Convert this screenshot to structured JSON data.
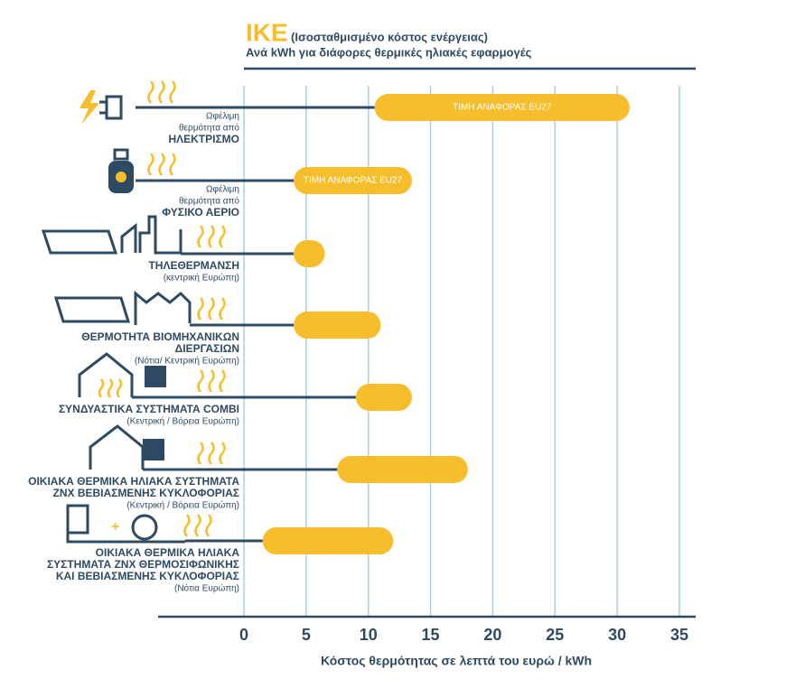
{
  "chart_data": {
    "type": "range-bar",
    "title": "ΙΚΕ",
    "title_note": "(Ισοσταθμισμένο κόστος ενέργειας)",
    "subtitle": "Ανά kWh για διάφορες θερμικές ηλιακές εφαρμογές",
    "x_label": "Κόστος θερμότητας σε λεπτά του ευρώ / kWh",
    "category_pre": [
      [
        "Ωφέλιμη",
        "θερμότητα από"
      ],
      [
        "Ωφέλιμη",
        "θερμότητα από"
      ],
      [],
      [],
      [],
      [],
      []
    ],
    "categories": [
      [
        "ΗΛΕΚΤΡΙΣΜΟ"
      ],
      [
        "ΦΥΣΙΚΟ ΑΕΡΙΟ"
      ],
      [
        "ΤΗΛΕΘΕΡΜΑΝΣΗ"
      ],
      [
        "ΘΕΡΜΟΤΗΤΑ ΒΙΟΜΗΧΑΝΙΚΩΝ",
        "ΔΙΕΡΓΑΣΙΩΝ"
      ],
      [
        "ΣΥΝΔΥΑΣΤΙΚΑ ΣΥΣΤΗΜΑΤΑ COMBI"
      ],
      [
        "ΟΙΚΙΑΚΑ ΘΕΡΜΙΚΑ ΗΛΙΑΚΑ ΣΥΣΤΗΜΑΤΑ",
        "ΖΝΧ ΒΕΒΙΑΣΜΕΝΗΣ ΚΥΚΛΟΦΟΡΙΑΣ"
      ],
      [
        "ΟΙΚΙΑΚΑ ΘΕΡΜΙΚΑ ΗΛΙΑΚΑ",
        "ΣΥΣΤΗΜΑΤΑ ΖΝΧ ΘΕΡΜΟΣΙΦΩΝΙΚΗΣ",
        "ΚΑΙ ΒΕΒΙΑΣΜΕΝΗΣ ΚΥΚΛΟΦΟΡΙΑΣ"
      ]
    ],
    "category_post": [
      [],
      [],
      [
        "(κεντρική Ευρώπη)"
      ],
      [
        "(Νότια/ Κεντρική Ευρώπη)"
      ],
      [
        "(Κεντρική / Βόρεια Ευρώπη)"
      ],
      [
        "(Κεντρική / Βόρεια Ευρώπη)"
      ],
      [
        "(Νότια Ευρώπη)"
      ]
    ],
    "low": [
      10.5,
      4,
      4,
      4,
      9,
      7.5,
      1.5
    ],
    "high": [
      31,
      13.5,
      6.5,
      11,
      13.5,
      18,
      12
    ],
    "bar_labels": [
      "ΤΙΜΗ ΑΝΑΦΟΡΑΣ  EU27",
      "ΤΙΜΗ ΑΝΑΦΟΡΑΣ  EU27",
      null,
      null,
      null,
      null,
      null
    ],
    "color": "#f6be2c",
    "xlim": [
      0,
      35
    ],
    "xticks": [
      0,
      5,
      10,
      15,
      20,
      25,
      30,
      35
    ],
    "grid": true
  }
}
